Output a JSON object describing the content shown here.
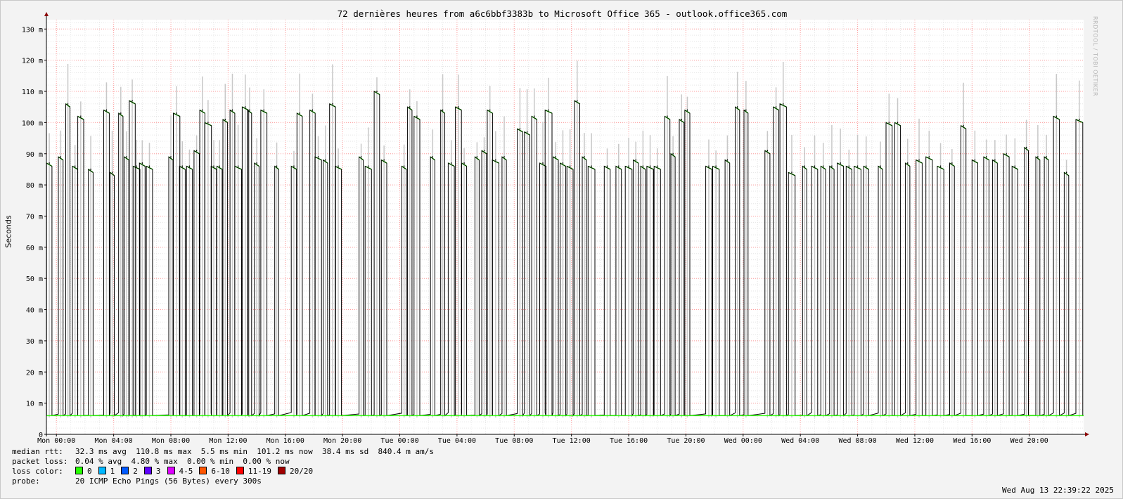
{
  "chart_data": {
    "type": "line",
    "title": "72 dernières heures from a6c6bbf3383b to Microsoft Office 365 - outlook.office365.com",
    "ylabel": "Seconds",
    "ylim": [
      0,
      0.133
    ],
    "y_ticks": [
      {
        "value": 0,
        "label": "0"
      },
      {
        "value": 0.01,
        "label": "10 m"
      },
      {
        "value": 0.02,
        "label": "20 m"
      },
      {
        "value": 0.03,
        "label": "30 m"
      },
      {
        "value": 0.04,
        "label": "40 m"
      },
      {
        "value": 0.05,
        "label": "50 m"
      },
      {
        "value": 0.06,
        "label": "60 m"
      },
      {
        "value": 0.07,
        "label": "70 m"
      },
      {
        "value": 0.08,
        "label": "80 m"
      },
      {
        "value": 0.09,
        "label": "90 m"
      },
      {
        "value": 0.1,
        "label": "100 m"
      },
      {
        "value": 0.11,
        "label": "110 m"
      },
      {
        "value": 0.12,
        "label": "120 m"
      },
      {
        "value": 0.13,
        "label": "130 m"
      }
    ],
    "x_range_hours": [
      -0.7,
      71.8
    ],
    "x_ticks": [
      {
        "hours": 0,
        "label": "Mon 00:00"
      },
      {
        "hours": 4,
        "label": "Mon 04:00"
      },
      {
        "hours": 8,
        "label": "Mon 08:00"
      },
      {
        "hours": 12,
        "label": "Mon 12:00"
      },
      {
        "hours": 16,
        "label": "Mon 16:00"
      },
      {
        "hours": 20,
        "label": "Mon 20:00"
      },
      {
        "hours": 24,
        "label": "Tue 00:00"
      },
      {
        "hours": 28,
        "label": "Tue 04:00"
      },
      {
        "hours": 32,
        "label": "Tue 08:00"
      },
      {
        "hours": 36,
        "label": "Tue 12:00"
      },
      {
        "hours": 40,
        "label": "Tue 16:00"
      },
      {
        "hours": 44,
        "label": "Tue 20:00"
      },
      {
        "hours": 48,
        "label": "Wed 00:00"
      },
      {
        "hours": 52,
        "label": "Wed 04:00"
      },
      {
        "hours": 56,
        "label": "Wed 08:00"
      },
      {
        "hours": 60,
        "label": "Wed 12:00"
      },
      {
        "hours": 64,
        "label": "Wed 16:00"
      },
      {
        "hours": 68,
        "label": "Wed 20:00"
      }
    ],
    "grid": true,
    "baseline_seconds": 0.006,
    "series": [
      {
        "legend": "median rtt (ms)",
        "peaks": [
          {
            "hours": -0.5,
            "ms": 87
          },
          {
            "hours": 0.3,
            "ms": 89
          },
          {
            "hours": 0.8,
            "ms": 106
          },
          {
            "hours": 1.3,
            "ms": 86
          },
          {
            "hours": 1.7,
            "ms": 102
          },
          {
            "hours": 2.4,
            "ms": 85
          },
          {
            "hours": 3.5,
            "ms": 104
          },
          {
            "hours": 3.9,
            "ms": 84
          },
          {
            "hours": 4.5,
            "ms": 103
          },
          {
            "hours": 4.9,
            "ms": 89
          },
          {
            "hours": 5.3,
            "ms": 107
          },
          {
            "hours": 5.6,
            "ms": 86
          },
          {
            "hours": 6.0,
            "ms": 87
          },
          {
            "hours": 6.5,
            "ms": 86
          },
          {
            "hours": 8.0,
            "ms": 89
          },
          {
            "hours": 8.4,
            "ms": 103
          },
          {
            "hours": 8.8,
            "ms": 86
          },
          {
            "hours": 9.3,
            "ms": 86
          },
          {
            "hours": 9.8,
            "ms": 91
          },
          {
            "hours": 10.2,
            "ms": 104
          },
          {
            "hours": 10.6,
            "ms": 100
          },
          {
            "hours": 11.0,
            "ms": 86
          },
          {
            "hours": 11.4,
            "ms": 86
          },
          {
            "hours": 11.8,
            "ms": 101
          },
          {
            "hours": 12.3,
            "ms": 104
          },
          {
            "hours": 12.7,
            "ms": 86
          },
          {
            "hours": 13.2,
            "ms": 105
          },
          {
            "hours": 13.5,
            "ms": 104
          },
          {
            "hours": 14.0,
            "ms": 87
          },
          {
            "hours": 14.5,
            "ms": 104
          },
          {
            "hours": 15.4,
            "ms": 86
          },
          {
            "hours": 16.6,
            "ms": 86
          },
          {
            "hours": 17.0,
            "ms": 103
          },
          {
            "hours": 17.9,
            "ms": 104
          },
          {
            "hours": 18.3,
            "ms": 89
          },
          {
            "hours": 18.8,
            "ms": 88
          },
          {
            "hours": 19.3,
            "ms": 106
          },
          {
            "hours": 19.7,
            "ms": 86
          },
          {
            "hours": 21.3,
            "ms": 89
          },
          {
            "hours": 21.8,
            "ms": 86
          },
          {
            "hours": 22.4,
            "ms": 110
          },
          {
            "hours": 22.9,
            "ms": 88
          },
          {
            "hours": 24.3,
            "ms": 86
          },
          {
            "hours": 24.7,
            "ms": 105
          },
          {
            "hours": 25.2,
            "ms": 102
          },
          {
            "hours": 26.3,
            "ms": 89
          },
          {
            "hours": 27.0,
            "ms": 104
          },
          {
            "hours": 27.6,
            "ms": 87
          },
          {
            "hours": 28.1,
            "ms": 105
          },
          {
            "hours": 28.5,
            "ms": 87
          },
          {
            "hours": 29.4,
            "ms": 89
          },
          {
            "hours": 29.9,
            "ms": 91
          },
          {
            "hours": 30.3,
            "ms": 104
          },
          {
            "hours": 30.7,
            "ms": 88
          },
          {
            "hours": 31.3,
            "ms": 89
          },
          {
            "hours": 32.4,
            "ms": 98
          },
          {
            "hours": 32.9,
            "ms": 97
          },
          {
            "hours": 33.4,
            "ms": 102
          },
          {
            "hours": 34.0,
            "ms": 87
          },
          {
            "hours": 34.4,
            "ms": 104
          },
          {
            "hours": 34.9,
            "ms": 89
          },
          {
            "hours": 35.4,
            "ms": 87
          },
          {
            "hours": 35.9,
            "ms": 86
          },
          {
            "hours": 36.4,
            "ms": 107
          },
          {
            "hours": 36.9,
            "ms": 89
          },
          {
            "hours": 37.4,
            "ms": 86
          },
          {
            "hours": 38.5,
            "ms": 86
          },
          {
            "hours": 39.3,
            "ms": 86
          },
          {
            "hours": 40.0,
            "ms": 86
          },
          {
            "hours": 40.5,
            "ms": 88
          },
          {
            "hours": 41.0,
            "ms": 86
          },
          {
            "hours": 41.5,
            "ms": 86
          },
          {
            "hours": 42.0,
            "ms": 86
          },
          {
            "hours": 42.7,
            "ms": 102
          },
          {
            "hours": 43.1,
            "ms": 90
          },
          {
            "hours": 43.7,
            "ms": 101
          },
          {
            "hours": 44.1,
            "ms": 104
          },
          {
            "hours": 45.6,
            "ms": 86
          },
          {
            "hours": 46.1,
            "ms": 86
          },
          {
            "hours": 46.9,
            "ms": 88
          },
          {
            "hours": 47.6,
            "ms": 105
          },
          {
            "hours": 48.2,
            "ms": 104
          },
          {
            "hours": 49.7,
            "ms": 91
          },
          {
            "hours": 50.3,
            "ms": 105
          },
          {
            "hours": 50.8,
            "ms": 106
          },
          {
            "hours": 51.4,
            "ms": 84
          },
          {
            "hours": 52.3,
            "ms": 86
          },
          {
            "hours": 53.0,
            "ms": 86
          },
          {
            "hours": 53.6,
            "ms": 86
          },
          {
            "hours": 54.2,
            "ms": 86
          },
          {
            "hours": 54.8,
            "ms": 87
          },
          {
            "hours": 55.4,
            "ms": 86
          },
          {
            "hours": 56.0,
            "ms": 86
          },
          {
            "hours": 56.6,
            "ms": 86
          },
          {
            "hours": 57.6,
            "ms": 86
          },
          {
            "hours": 58.2,
            "ms": 100
          },
          {
            "hours": 58.8,
            "ms": 100
          },
          {
            "hours": 59.5,
            "ms": 87
          },
          {
            "hours": 60.3,
            "ms": 88
          },
          {
            "hours": 61.0,
            "ms": 89
          },
          {
            "hours": 61.8,
            "ms": 86
          },
          {
            "hours": 62.6,
            "ms": 87
          },
          {
            "hours": 63.4,
            "ms": 99
          },
          {
            "hours": 64.2,
            "ms": 88
          },
          {
            "hours": 65.0,
            "ms": 89
          },
          {
            "hours": 65.6,
            "ms": 88
          },
          {
            "hours": 66.4,
            "ms": 90
          },
          {
            "hours": 67.0,
            "ms": 86
          },
          {
            "hours": 67.8,
            "ms": 92
          },
          {
            "hours": 68.6,
            "ms": 89
          },
          {
            "hours": 69.2,
            "ms": 89
          },
          {
            "hours": 69.9,
            "ms": 102
          },
          {
            "hours": 70.6,
            "ms": 84
          },
          {
            "hours": 71.5,
            "ms": 101
          }
        ]
      }
    ]
  },
  "watermark": "RRDTOOL / TOBI OETIKER",
  "stats": {
    "median_label": "median rtt:",
    "median_values": "32.3 ms avg  110.8 ms max  5.5 ms min  101.2 ms now  38.4 ms sd  840.4 m am/s",
    "loss_label": "packet loss:",
    "loss_values": "0.04 % avg  4.80 % max  0.00 % min  0.00 % now",
    "color_label": "loss color:",
    "probe_label": "probe:",
    "probe_value": "20 ICMP Echo Pings (56 Bytes) every 300s",
    "timestamp": "Wed Aug 13 22:39:22 2025"
  },
  "loss_legend": [
    {
      "label": "0",
      "color": "#26ff00"
    },
    {
      "label": "1",
      "color": "#00b8ff"
    },
    {
      "label": "2",
      "color": "#0059ff"
    },
    {
      "label": "3",
      "color": "#5e00ff"
    },
    {
      "label": "4-5",
      "color": "#dd00ff"
    },
    {
      "label": "6-10",
      "color": "#ff5500"
    },
    {
      "label": "11-19",
      "color": "#ff0000"
    },
    {
      "label": "20/20",
      "color": "#a10000"
    }
  ],
  "colors": {
    "major_grid": "#ff9e9e",
    "minor_grid": "#e6e6e6",
    "line": "#000000",
    "loss_zero": "#26ff00",
    "smoke": "#c8c8c8",
    "axis": "#000000",
    "arrow": "#8b0000"
  }
}
